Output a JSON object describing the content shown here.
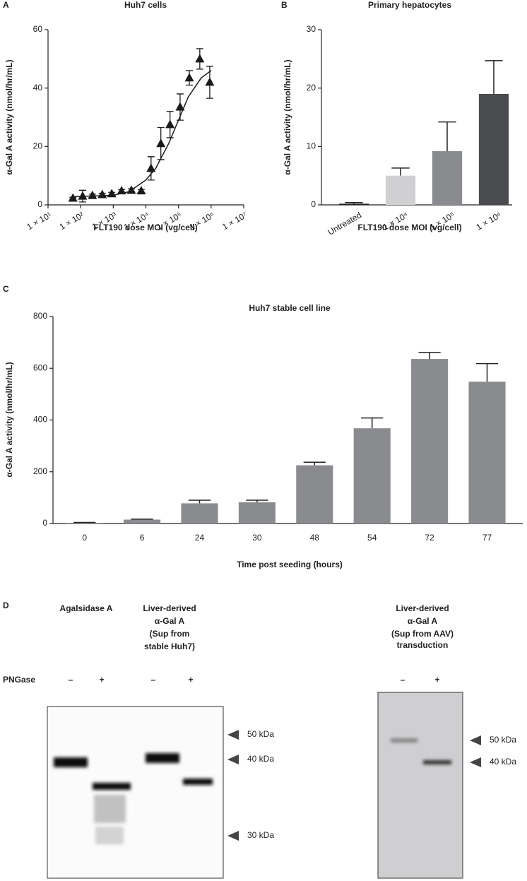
{
  "chart_data": [
    {
      "type": "scatter",
      "panel": "A",
      "title": "Huh7 cells",
      "xlabel": "FLT190 dose MOI (vg/cell)",
      "ylabel": "α-Gal A activity (nmol/hr/mL)",
      "xscale": "log",
      "xlim": [
        10,
        10000000
      ],
      "ylim": [
        0,
        60
      ],
      "xticks": [
        {
          "value": 10,
          "label": "1 × 10¹"
        },
        {
          "value": 100,
          "label": "1 × 10²"
        },
        {
          "value": 1000,
          "label": "1 × 10³"
        },
        {
          "value": 10000,
          "label": "1 × 10⁴"
        },
        {
          "value": 100000,
          "label": "1 × 10⁵"
        },
        {
          "value": 1000000,
          "label": "1 × 10⁶"
        },
        {
          "value": 10000000,
          "label": "1 × 10⁷"
        }
      ],
      "yticks": [
        0,
        20,
        40,
        60
      ],
      "color": "#1a1a1a",
      "x": [
        58,
        115,
        230,
        460,
        900,
        1800,
        3600,
        7200,
        14400,
        28800,
        55000,
        112000,
        215000,
        450000,
        910000
      ],
      "values": [
        2.3,
        3,
        3.2,
        3.5,
        3.8,
        4.8,
        5,
        4.8,
        12.5,
        21,
        27.5,
        33.5,
        43.5,
        50,
        42
      ],
      "errors": [
        0.3,
        2,
        0.5,
        0.5,
        0.5,
        0.5,
        0.5,
        0.5,
        4,
        5.5,
        4.5,
        4.5,
        2.5,
        3.5,
        5.5
      ],
      "fit": {
        "x": [
          58,
          1000,
          3000,
          10000,
          20000,
          50000,
          100000,
          200000,
          500000,
          1000000
        ],
        "y": [
          2.8,
          3.3,
          4.5,
          8.5,
          12.5,
          21,
          29,
          37,
          43.5,
          46
        ]
      }
    },
    {
      "type": "bar",
      "panel": "B",
      "title": "Primary hepatocytes",
      "xlabel": "FLT190 dose MOI (vg/cell)",
      "ylabel": "α-Gal A activity (nmol/hr/mL)",
      "categories": [
        "Untreated",
        "1 × 10⁴",
        "1 × 10⁵",
        "1 × 10⁶"
      ],
      "values": [
        0.2,
        5,
        9.2,
        19
      ],
      "errors": [
        0.2,
        1.3,
        5,
        5.7
      ],
      "colors": [
        "#222222",
        "#d0d0d2",
        "#8a8b8f",
        "#4a4b4f"
      ],
      "ylim": [
        0,
        30
      ],
      "yticks": [
        0,
        10,
        20,
        30
      ]
    },
    {
      "type": "bar",
      "panel": "C",
      "title": "Huh7 stable cell line",
      "xlabel": "Time post seeding (hours)",
      "ylabel": "α-Gal A activity (nmol/hr/mL)",
      "categories": [
        "0",
        "6",
        "24",
        "30",
        "48",
        "54",
        "72",
        "77"
      ],
      "values": [
        2,
        15,
        78,
        82,
        225,
        368,
        636,
        548
      ],
      "errors": [
        2,
        2,
        12,
        8,
        12,
        40,
        25,
        70
      ],
      "color": "#8a8b8f",
      "ylim": [
        0,
        800
      ],
      "yticks": [
        0,
        200,
        400,
        600,
        800
      ]
    }
  ],
  "blot": {
    "panel": "D",
    "left_header_1": [
      "Agalsidase A"
    ],
    "left_header_2": [
      "Liver-derived",
      "α-Gal A",
      "(Sup from",
      "stable Huh7)"
    ],
    "right_header": [
      "Liver-derived",
      "α-Gal A",
      "(Sup from AAV)",
      "transduction"
    ],
    "pngase": "PNGase",
    "signs": [
      "–",
      "+",
      "–",
      "+",
      "–",
      "+"
    ],
    "markers_left": [
      "50 kDa",
      "40 kDa",
      "30 kDa"
    ],
    "markers_right": [
      "50 kDa",
      "40 kDa"
    ]
  }
}
